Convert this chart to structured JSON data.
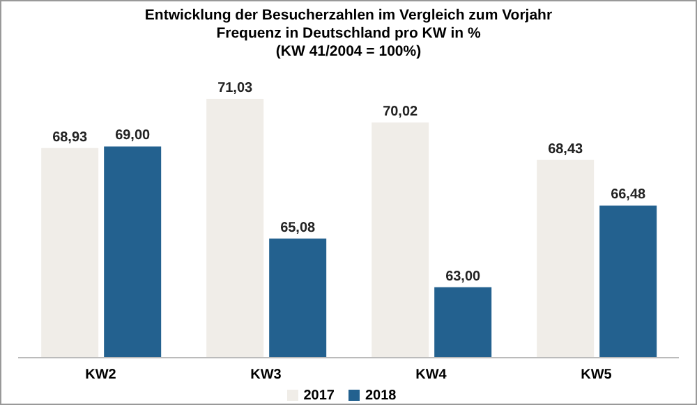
{
  "chart_data": {
    "type": "bar",
    "title": "Entwicklung der Besucherzahlen im Vergleich zum Vorjahr\nFrequenz in Deutschland pro KW in %\n(KW 41/2004 = 100%)",
    "categories": [
      "KW2",
      "KW3",
      "KW4",
      "KW5"
    ],
    "series": [
      {
        "name": "2017",
        "color": "#f0ede8",
        "values": [
          68.93,
          71.03,
          70.02,
          68.43
        ],
        "value_labels": [
          "68,93",
          "71,03",
          "70,02",
          "68,43"
        ]
      },
      {
        "name": "2018",
        "color": "#23618f",
        "values": [
          69.0,
          65.08,
          63.0,
          66.48
        ],
        "value_labels": [
          "69,00",
          "65,08",
          "63,00",
          "66,48"
        ]
      }
    ],
    "ylim": [
      60,
      71.03
    ],
    "tick_labels": "x",
    "grid": false,
    "legend": "bottom"
  }
}
